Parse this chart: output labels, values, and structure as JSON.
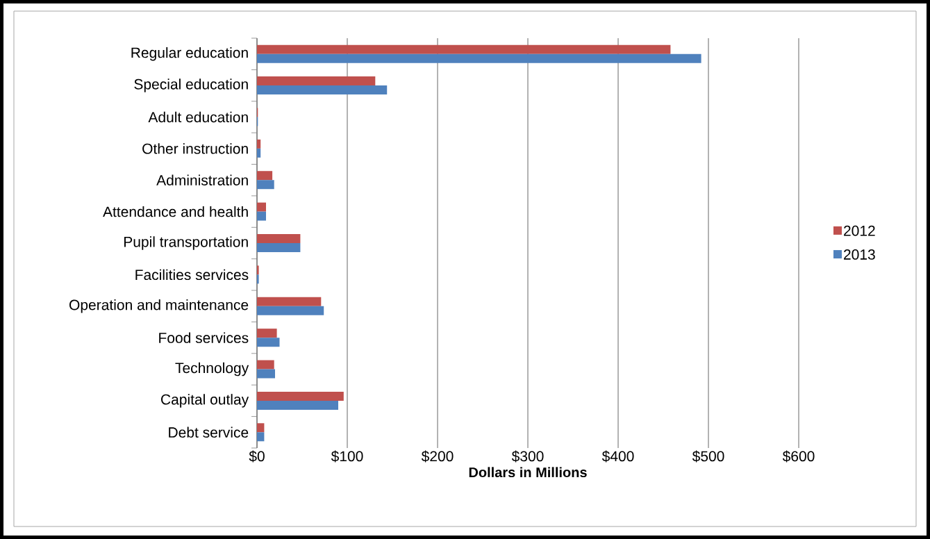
{
  "chart_data": {
    "type": "bar",
    "orientation": "horizontal",
    "xlabel": "Dollars  in Millions",
    "categories": [
      "Regular education",
      "Special education",
      "Adult education",
      "Other instruction",
      "Administration",
      "Attendance and health",
      "Pupil transportation",
      "Facilities services",
      "Operation and maintenance",
      "Food services",
      "Technology",
      "Capital outlay",
      "Debt service"
    ],
    "series": [
      {
        "name": "2012",
        "color": "#c0504d",
        "values": [
          458,
          131,
          1,
          4,
          17,
          10,
          48,
          2,
          71,
          22,
          19,
          96,
          8
        ]
      },
      {
        "name": "2013",
        "color": "#4f81bd",
        "values": [
          492,
          144,
          1,
          4,
          19,
          10,
          48,
          2,
          74,
          25,
          20,
          90,
          8
        ]
      }
    ],
    "xlim": [
      0,
      600
    ],
    "xticks": [
      {
        "value": 0,
        "label": "$0"
      },
      {
        "value": 100,
        "label": "$100"
      },
      {
        "value": 200,
        "label": "$200"
      },
      {
        "value": 300,
        "label": "$300"
      },
      {
        "value": 400,
        "label": "$400"
      },
      {
        "value": 500,
        "label": "$500"
      },
      {
        "value": 600,
        "label": "$600"
      }
    ],
    "grid": "x",
    "legend": "right"
  }
}
